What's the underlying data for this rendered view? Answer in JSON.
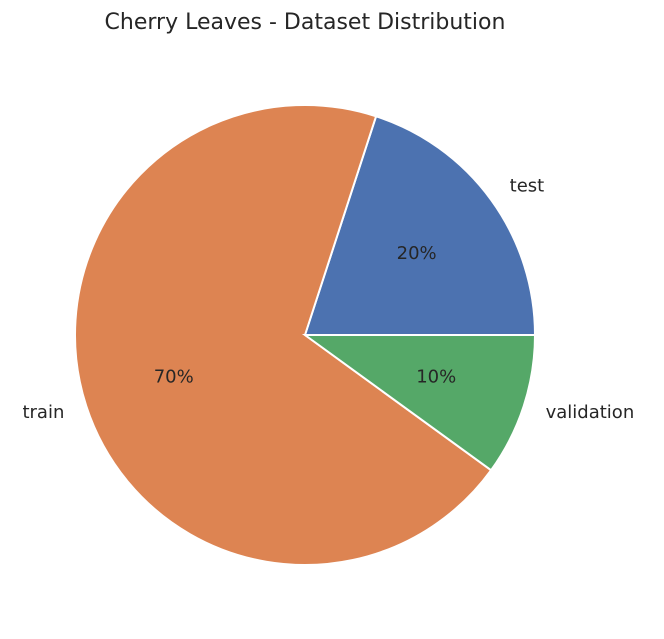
{
  "chart_data": {
    "type": "pie",
    "title": "Cherry Leaves - Dataset Distribution",
    "slices": [
      {
        "label": "test",
        "value": 20,
        "pct_label": "20%",
        "color": "#4c72b0"
      },
      {
        "label": "train",
        "value": 70,
        "pct_label": "70%",
        "color": "#dd8452"
      },
      {
        "label": "validation",
        "value": 10,
        "pct_label": "10%",
        "color": "#55a868"
      }
    ],
    "start_angle_deg": 0,
    "direction": "counterclockwise",
    "edge_color": "#ffffff",
    "legend": "none"
  }
}
